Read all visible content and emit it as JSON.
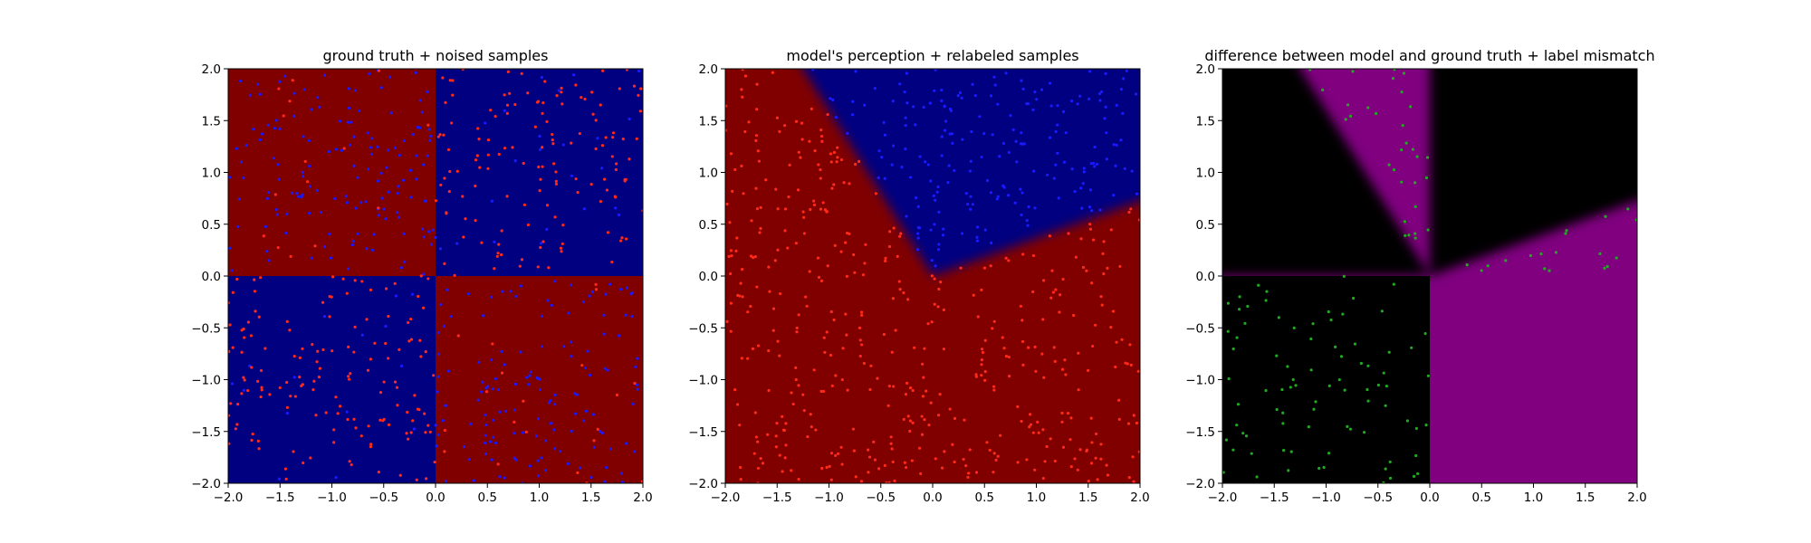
{
  "figure": {
    "background": "#ffffff"
  },
  "chart_data": [
    {
      "type": "scatter",
      "title": "ground truth + noised samples",
      "xlabel": "",
      "ylabel": "",
      "xlim": [
        -2.0,
        2.0
      ],
      "ylim": [
        -2.0,
        2.0
      ],
      "xticks": [
        "−2.0",
        "−1.5",
        "−1.0",
        "−0.5",
        "0.0",
        "0.5",
        "1.0",
        "1.5",
        "2.0"
      ],
      "yticks": [
        "−2.0",
        "−1.5",
        "−1.0",
        "−0.5",
        "0.0",
        "0.5",
        "1.0",
        "1.5",
        "2.0"
      ],
      "grid": false,
      "background": {
        "kind": "quadrants",
        "top_left": "#800000",
        "top_right": "#000080",
        "bottom_left": "#000080",
        "bottom_right": "#800000"
      },
      "points": {
        "colors": {
          "red": "#ff2a1a",
          "blue": "#1a1aff"
        },
        "count_per_quadrant": 160,
        "top_left": {
          "red": 0.1,
          "blue": 0.9
        },
        "top_right": {
          "red": 0.9,
          "blue": 0.1
        },
        "bottom_left": {
          "red": 0.9,
          "blue": 0.1
        },
        "bottom_right": {
          "red": 0.1,
          "blue": 0.9
        },
        "seed": 11
      }
    },
    {
      "type": "scatter",
      "title": "model's perception + relabeled samples",
      "xlabel": "",
      "ylabel": "",
      "xlim": [
        -2.0,
        2.0
      ],
      "ylim": [
        -2.0,
        2.0
      ],
      "xticks": [
        "−2.0",
        "−1.5",
        "−1.0",
        "−0.5",
        "0.0",
        "0.5",
        "1.0",
        "1.5",
        "2.0"
      ],
      "yticks": [
        "−2.0",
        "−1.5",
        "−1.0",
        "−0.5",
        "0.0",
        "0.5",
        "1.0",
        "1.5",
        "2.0"
      ],
      "grid": false,
      "background": {
        "kind": "wedge",
        "outside_color": "#800000",
        "inside_color": "#000080",
        "wedge_angles_deg": [
          20,
          122
        ]
      },
      "points": {
        "colors": {
          "red": "#ff2a1a",
          "blue": "#1a1aff"
        },
        "count": 640,
        "rule": "blue inside wedge, red elsewhere",
        "seed": 23
      }
    },
    {
      "type": "scatter",
      "title": "difference between model and ground truth + label mismatch",
      "xlabel": "",
      "ylabel": "",
      "xlim": [
        -2.0,
        2.0
      ],
      "ylim": [
        -2.0,
        2.0
      ],
      "xticks": [
        "−2.0",
        "−1.5",
        "−1.0",
        "−0.5",
        "0.0",
        "0.5",
        "1.0",
        "1.5",
        "2.0"
      ],
      "yticks": [
        "−2.0",
        "−1.5",
        "−1.0",
        "−0.5",
        "0.0",
        "0.5",
        "1.0",
        "1.5",
        "2.0"
      ],
      "grid": false,
      "background": {
        "kind": "difference",
        "match_color": "#000000",
        "mismatch_color": "#800080",
        "wedge_angles_deg": [
          20,
          122
        ]
      },
      "points": {
        "colors": {
          "mismatch": "#1faa1f"
        },
        "count": 640,
        "rule": "green where model label differs from ground-truth quadrant label",
        "seed": 23
      }
    }
  ]
}
